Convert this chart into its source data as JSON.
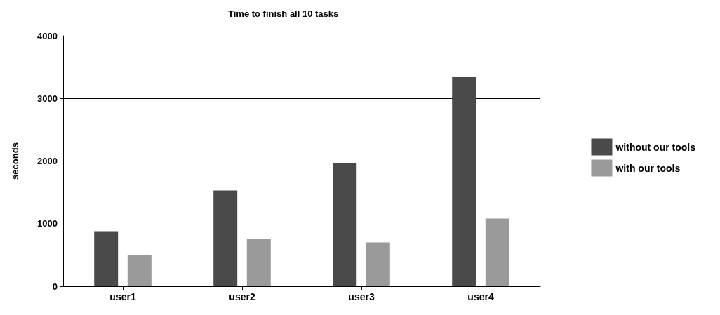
{
  "chart_data": {
    "type": "bar",
    "title": "Time to finish all 10 tasks",
    "ylabel": "seconds",
    "categories": [
      "user1",
      "user2",
      "user3",
      "user4"
    ],
    "series": [
      {
        "name": "without our tools",
        "color": "#4a4a4a",
        "values": [
          880,
          1530,
          1970,
          3340
        ]
      },
      {
        "name": "with our tools",
        "color": "#9a9a9a",
        "values": [
          500,
          750,
          700,
          1080
        ]
      }
    ],
    "ylim": [
      0,
      4000
    ],
    "yticks": [
      0,
      1000,
      2000,
      3000,
      4000
    ],
    "grid": "y",
    "legend": "right"
  }
}
